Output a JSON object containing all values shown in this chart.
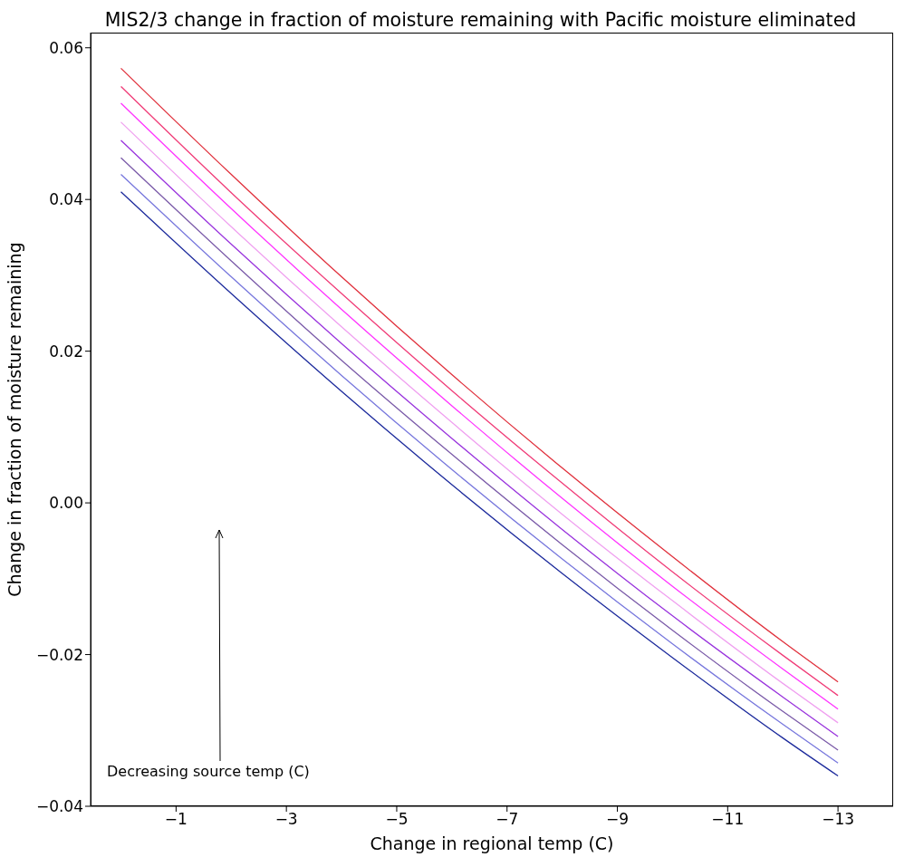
{
  "chart_data": {
    "type": "line",
    "title": "MIS2/3 change in fraction of moisture remaining with Pacific moisture eliminated",
    "xlabel": "Change in regional temp (C)",
    "ylabel": "Change in fraction of moisture remaining",
    "x": [
      0,
      -2,
      -4,
      -6,
      -8,
      -10,
      -12,
      -13
    ],
    "series": [
      {
        "color": "#e0303c",
        "values": [
          0.0573,
          0.0433,
          0.0298,
          0.0169,
          0.0046,
          -0.0071,
          -0.0183,
          -0.0236
        ]
      },
      {
        "color": "#f03c78",
        "values": [
          0.0549,
          0.0409,
          0.0276,
          0.0148,
          0.0026,
          -0.0091,
          -0.0201,
          -0.0254
        ]
      },
      {
        "color": "#ff33ff",
        "values": [
          0.0527,
          0.0388,
          0.0255,
          0.0128,
          0.0006,
          -0.011,
          -0.0219,
          -0.0272
        ]
      },
      {
        "color": "#f0a0f0",
        "values": [
          0.0502,
          0.0364,
          0.0232,
          0.0106,
          -0.0015,
          -0.0129,
          -0.0238,
          -0.029
        ]
      },
      {
        "color": "#9933dd",
        "values": [
          0.0478,
          0.0341,
          0.021,
          0.0085,
          -0.0035,
          -0.0149,
          -0.0256,
          -0.0308
        ]
      },
      {
        "color": "#7a5aa8",
        "values": [
          0.0455,
          0.0319,
          0.0188,
          0.0064,
          -0.0055,
          -0.0168,
          -0.0275,
          -0.0326
        ]
      },
      {
        "color": "#7777dd",
        "values": [
          0.0433,
          0.0298,
          0.0168,
          0.0044,
          -0.0074,
          -0.0186,
          -0.0292,
          -0.0343
        ]
      },
      {
        "color": "#1c2a9c",
        "values": [
          0.041,
          0.0276,
          0.0147,
          0.0024,
          -0.0093,
          -0.0204,
          -0.031,
          -0.036
        ]
      }
    ],
    "xlim": [
      0.55,
      -14
    ],
    "xticks": [
      {
        "value": -1,
        "label": "−1"
      },
      {
        "value": -3,
        "label": "−3"
      },
      {
        "value": -5,
        "label": "−5"
      },
      {
        "value": -7,
        "label": "−7"
      },
      {
        "value": -9,
        "label": "−9"
      },
      {
        "value": -11,
        "label": "−11"
      },
      {
        "value": -13,
        "label": "−13"
      }
    ],
    "ylim": [
      -0.04,
      0.062
    ],
    "yticks": [
      {
        "value": -0.04,
        "label": "−0.04"
      },
      {
        "value": -0.02,
        "label": "−0.02"
      },
      {
        "value": 0,
        "label": "0.00"
      },
      {
        "value": 0.02,
        "label": "0.02"
      },
      {
        "value": 0.04,
        "label": "0.04"
      },
      {
        "value": 0.06,
        "label": "0.06"
      }
    ],
    "annotations": [
      "Decreasing source temp (C)"
    ],
    "grid": false,
    "legend": false,
    "marker": "none",
    "line_style": "solid"
  }
}
